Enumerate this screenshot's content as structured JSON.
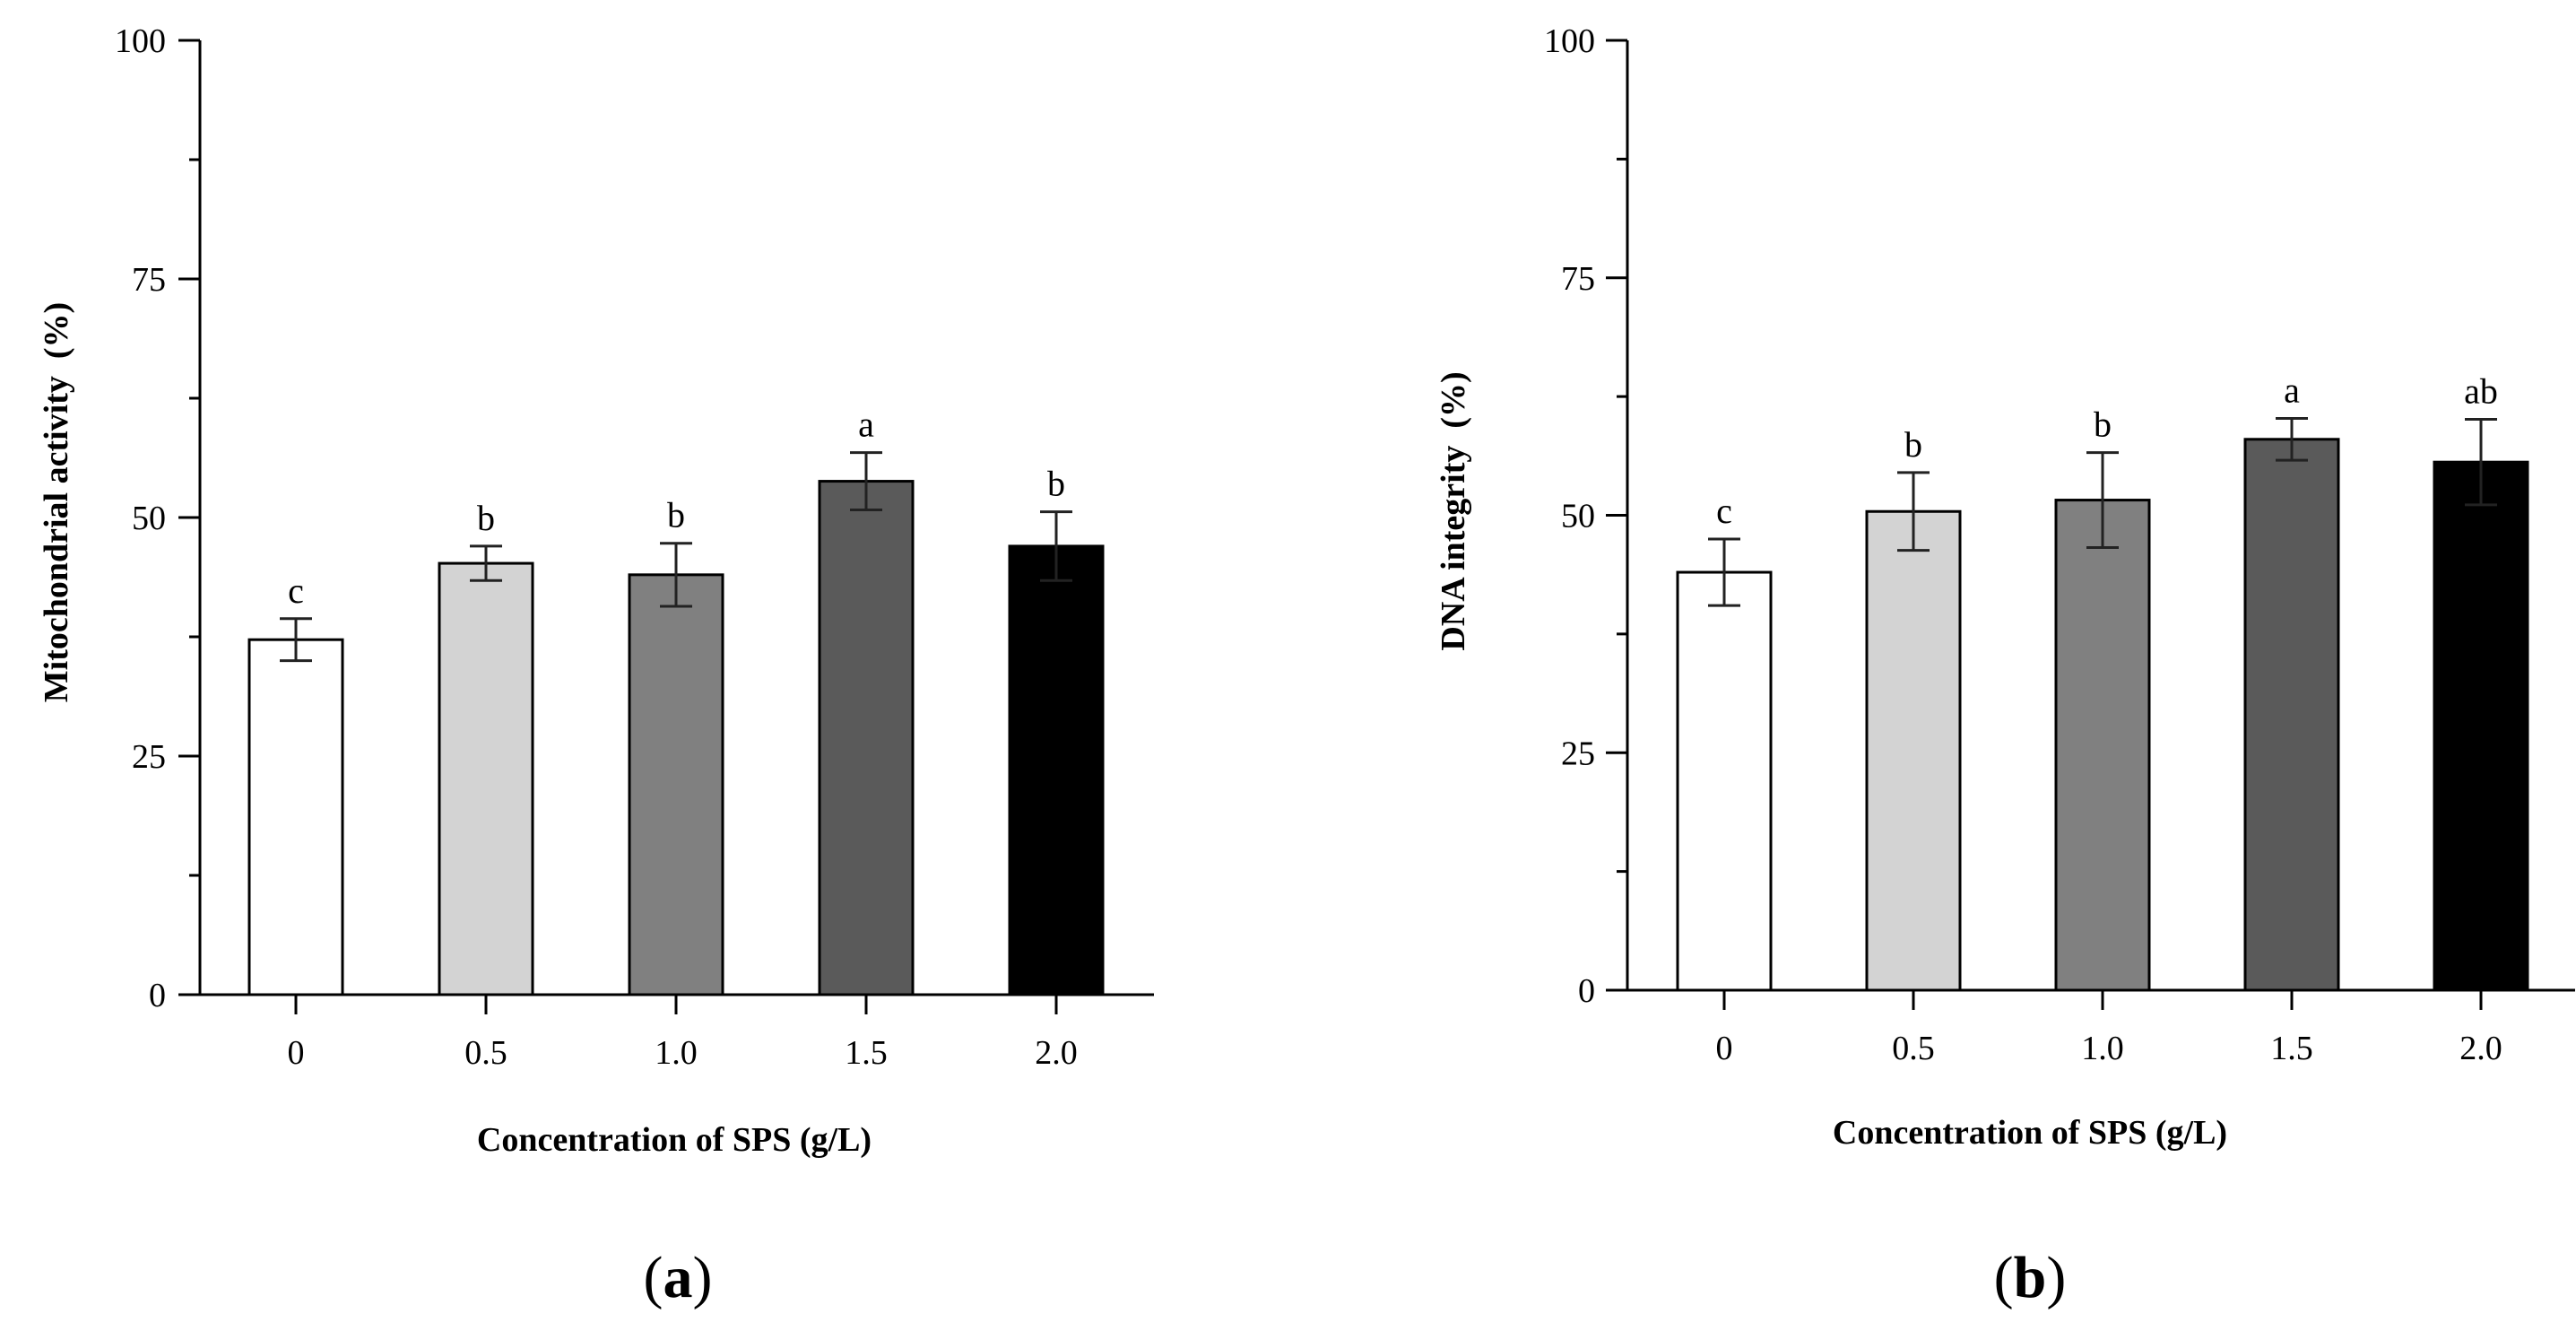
{
  "chart_data": [
    {
      "type": "bar",
      "panel_label_prefix": "(",
      "panel_label": "a",
      "panel_label_suffix": ")",
      "xlabel": "Concentration of SPS (g/L)",
      "ylabel": "Mitochondrial activity  (%)",
      "categories": [
        "0",
        "0.5",
        "1.0",
        "1.5",
        "2.0"
      ],
      "values": [
        37.2,
        45.2,
        44.0,
        53.8,
        47.0
      ],
      "errors": [
        2.2,
        1.8,
        3.3,
        3.0,
        3.6
      ],
      "significance": [
        "c",
        "b",
        "b",
        "a",
        "b"
      ],
      "bar_colors": [
        "#ffffff",
        "#d3d3d3",
        "#808080",
        "#5a5a5a",
        "#000000"
      ],
      "ylim": [
        0,
        100
      ],
      "yticks": [
        "0",
        "25",
        "50",
        "75",
        "100"
      ],
      "grid": false
    },
    {
      "type": "bar",
      "panel_label_prefix": "(",
      "panel_label": "b",
      "panel_label_suffix": ")",
      "xlabel": "Concentration of SPS (g/L)",
      "ylabel": "DNA integrity  (%)",
      "categories": [
        "0",
        "0.5",
        "1.0",
        "1.5",
        "2.0"
      ],
      "values": [
        44.0,
        50.4,
        51.6,
        58.0,
        55.6
      ],
      "errors": [
        3.5,
        4.1,
        5.0,
        2.2,
        4.5
      ],
      "significance": [
        "c",
        "b",
        "b",
        "a",
        "ab"
      ],
      "bar_colors": [
        "#ffffff",
        "#d3d3d3",
        "#808080",
        "#5a5a5a",
        "#000000"
      ],
      "ylim": [
        0,
        100
      ],
      "yticks": [
        "0",
        "25",
        "50",
        "75",
        "100"
      ],
      "grid": false
    }
  ]
}
